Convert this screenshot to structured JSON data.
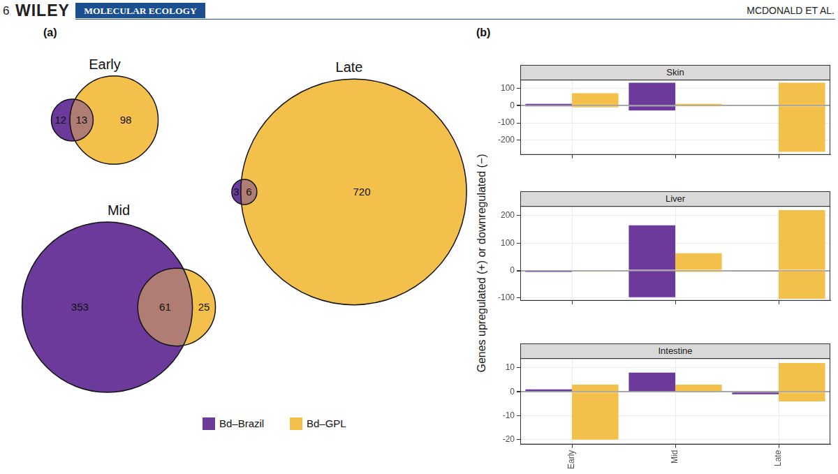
{
  "header": {
    "page": "6",
    "publisher": "WILEY",
    "journal": "MOLECULAR ECOLOGY",
    "authors": "MCDONALD ET AL."
  },
  "chart_data": [
    {
      "type": "venn",
      "panel": "(a)",
      "legend": "bottom",
      "series": [
        {
          "name": "Bd–Brazil",
          "color": "#6b3a9b"
        },
        {
          "name": "Bd–GPL",
          "color": "#f3c14b"
        }
      ],
      "sets": [
        {
          "title": "Early",
          "only": [
            12,
            98
          ],
          "shared": 13
        },
        {
          "title": "Mid",
          "only": [
            353,
            25
          ],
          "shared": 61
        },
        {
          "title": "Late",
          "only": [
            3,
            720
          ],
          "shared": 6
        }
      ]
    },
    {
      "type": "bar",
      "panel": "(b)",
      "stacked": true,
      "grid": true,
      "ylabel": "Genes upregulated (+) or downregulated (−)",
      "categories": [
        "Early",
        "Mid",
        "Late"
      ],
      "facets": [
        {
          "title": "Skin",
          "ylim": [
            -285,
            150
          ],
          "yticks": [
            -200,
            -100,
            0,
            100
          ],
          "series": [
            {
              "up": [
                10,
                133,
                0
              ],
              "down": [
                -2,
                -28,
                0
              ]
            },
            {
              "up": [
                72,
                10,
                133
              ],
              "down": [
                -10,
                -2,
                -268
              ]
            }
          ]
        },
        {
          "title": "Liver",
          "ylim": [
            -110,
            235
          ],
          "yticks": [
            -100,
            0,
            100,
            200
          ],
          "series": [
            {
              "up": [
                0,
                165,
                3
              ],
              "down": [
                -5,
                -97,
                -2
              ]
            },
            {
              "up": [
                0,
                63,
                220
              ],
              "down": [
                -2,
                -5,
                -103
              ]
            }
          ]
        },
        {
          "title": "Intestine",
          "ylim": [
            -22,
            14
          ],
          "yticks": [
            -20,
            -10,
            0,
            10
          ],
          "series": [
            {
              "up": [
                1,
                8,
                0
              ],
              "down": [
                0,
                0,
                -1
              ]
            },
            {
              "up": [
                3,
                3,
                12
              ],
              "down": [
                -20,
                0,
                -4
              ]
            }
          ]
        }
      ]
    }
  ]
}
